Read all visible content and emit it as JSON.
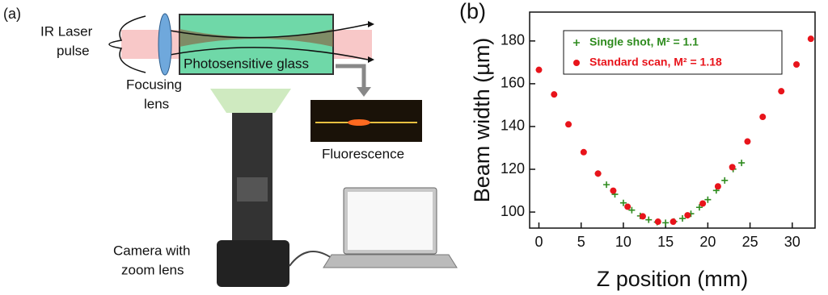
{
  "panel_a": {
    "label": "(a)",
    "ir_laser_pulse": [
      "IR Laser",
      "pulse"
    ],
    "focusing_lens": [
      "Focusing",
      "lens"
    ],
    "glass": "Photosensitive glass",
    "fluorescence": "Fluorescence",
    "camera": [
      "Camera with",
      "zoom lens"
    ]
  },
  "chart_data": {
    "type": "scatter",
    "panel_label": "(b)",
    "x_label": "Z position (mm)",
    "y_label": "Beam width (µm)",
    "xlim": [
      -1.1,
      32.7
    ],
    "ylim": [
      92.5,
      193.5
    ],
    "xticks": [
      0,
      5,
      10,
      15,
      20,
      25,
      30
    ],
    "yticks": [
      100,
      120,
      140,
      160,
      180
    ],
    "legend": "upper left",
    "series": [
      {
        "name": "Single shot, M² = 1.1",
        "color": "#2e8b1e",
        "marker": "plus",
        "x": [
          7,
          8,
          9,
          10,
          11,
          12,
          13,
          14,
          15,
          16,
          17,
          18,
          19,
          20,
          21,
          22,
          23,
          24
        ],
        "values": [
          118,
          112.8,
          108.3,
          104.3,
          100.9,
          98.2,
          96.4,
          95.3,
          95,
          95.6,
          97,
          99.2,
          102.2,
          105.8,
          110.1,
          114.8,
          120.1,
          123
        ]
      },
      {
        "name": "Standard scan, M² = 1.18",
        "color": "#e8141b",
        "marker": "circle",
        "x": [
          0,
          1.8,
          3.5,
          5.3,
          7,
          8.8,
          10.5,
          12.3,
          14.1,
          15.9,
          17.6,
          19.4,
          21.2,
          22.9,
          24.7,
          26.5,
          28.7,
          30.5,
          32.2
        ],
        "values": [
          166.5,
          155,
          141,
          128,
          118,
          110,
          102.5,
          98,
          95.5,
          95.5,
          98.5,
          104,
          112,
          121,
          133,
          144.5,
          156.5,
          169,
          181
        ]
      }
    ]
  }
}
